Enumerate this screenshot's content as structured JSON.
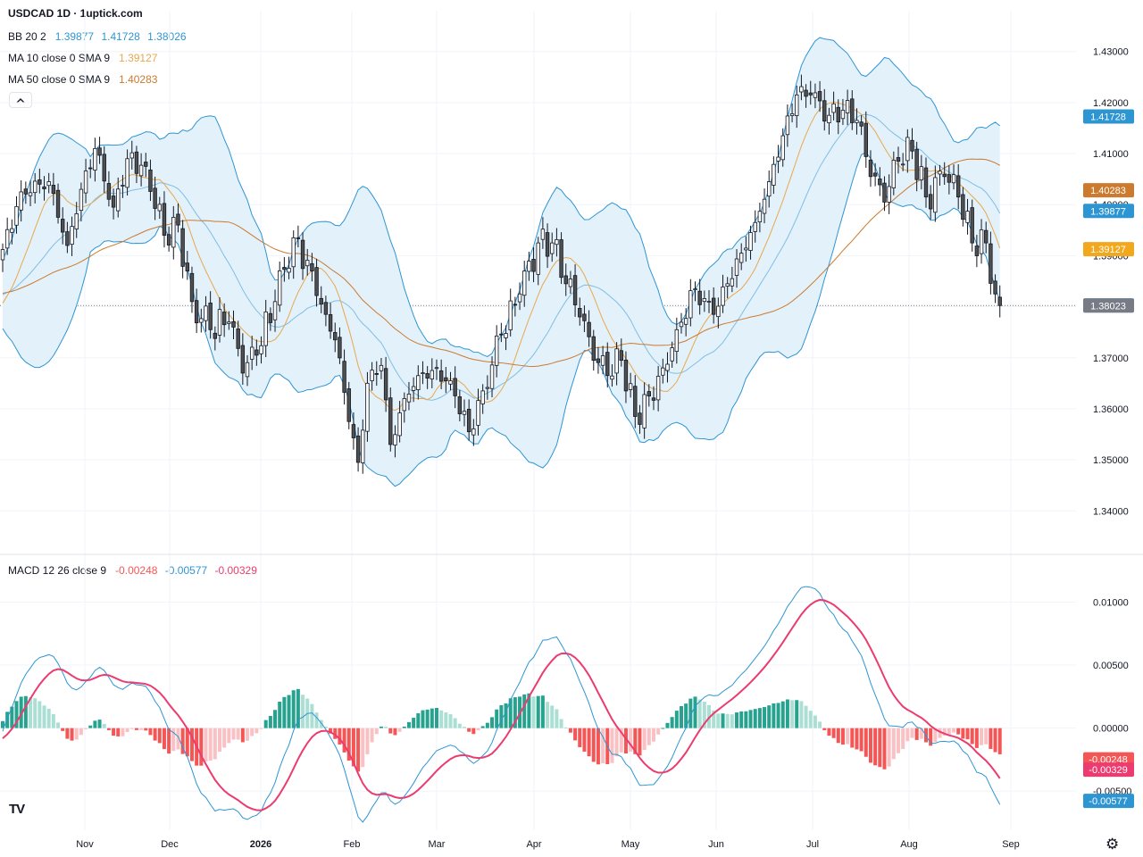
{
  "header": {
    "title": "USDCAD 1D · 1uptick.com",
    "bb": {
      "label": "BB 20 2",
      "basis": "1.39877",
      "upper": "1.41728",
      "lower": "1.38026"
    },
    "ma10": {
      "label": "MA 10 close 0 SMA 9",
      "value": "1.39127"
    },
    "ma50": {
      "label": "MA 50 close 0 SMA 9",
      "value": "1.40283"
    },
    "macd": {
      "label": "MACD 12 26 close 9",
      "hist": "-0.00248",
      "macd": "-0.00577",
      "signal": "-0.00329"
    },
    "collapse_icon": "chevron-up-icon"
  },
  "colors": {
    "up": "#ffffff",
    "down": "#505050",
    "wick": "#131722",
    "bb_line": "#2e95d3",
    "bb_fill": "#e3f1fb",
    "ma10": "#e8a84c",
    "ma50": "#cc7a2e",
    "macd": "#2e95d3",
    "signal": "#ec3b6e",
    "hist_pos_strong": "#26a28f",
    "hist_pos_weak": "#acdfd3",
    "hist_neg_strong": "#f45656",
    "hist_neg_weak": "#f9c1c4"
  },
  "price_axis": {
    "ticks": [
      "1.43000",
      "1.42000",
      "1.41000",
      "1.40000",
      "1.39000",
      "1.38000",
      "1.37000",
      "1.36000",
      "1.35000",
      "1.34000"
    ],
    "badges": [
      {
        "text": "1.41728",
        "value": 1.41728,
        "color": "#2e95d3"
      },
      {
        "text": "1.40283",
        "value": 1.40283,
        "color": "#cc7a2e"
      },
      {
        "text": "1.39877",
        "value": 1.39877,
        "color": "#2e95d3"
      },
      {
        "text": "1.39127",
        "value": 1.39127,
        "color": "#f2a81d"
      },
      {
        "text": "1.38026",
        "value": 1.38026,
        "color": "#2e95d3"
      },
      {
        "text": "1.38023",
        "value": 1.38023,
        "color": "#787b86"
      }
    ]
  },
  "macd_axis": {
    "ticks": [
      "0.01000",
      "0.00500",
      "0.00000",
      "-0.00500"
    ],
    "badges": [
      {
        "text": "-0.00248",
        "value": -0.00248,
        "color": "#f45656"
      },
      {
        "text": "-0.00329",
        "value": -0.00329,
        "color": "#ec3b6e"
      },
      {
        "text": "-0.00577",
        "value": -0.00577,
        "color": "#2e95d3"
      }
    ]
  },
  "time_axis": {
    "labels": [
      "Nov",
      "Dec",
      "2026",
      "Feb",
      "Mar",
      "Apr",
      "May",
      "Jun",
      "Jul",
      "Aug",
      "Sep"
    ],
    "bold": "2026"
  },
  "footer": {
    "logo": "TV",
    "settings_icon": "gear-icon"
  },
  "chart_data": {
    "type": "candlestick",
    "symbol": "USDCAD",
    "interval": "1D",
    "price_range": [
      1.332,
      1.438
    ],
    "macd_range": [
      -0.0081,
      0.0135
    ],
    "current_price": 1.38023,
    "anchors": [
      {
        "d": 0,
        "c": 1.3912
      },
      {
        "d": 4,
        "c": 1.4025
      },
      {
        "d": 10,
        "c": 1.4045
      },
      {
        "d": 14,
        "c": 1.392
      },
      {
        "d": 17,
        "c": 1.403
      },
      {
        "d": 20,
        "c": 1.411
      },
      {
        "d": 24,
        "c": 1.3995
      },
      {
        "d": 27,
        "c": 1.409
      },
      {
        "d": 31,
        "c": 1.4075
      },
      {
        "d": 35,
        "c": 1.394
      },
      {
        "d": 38,
        "c": 1.396
      },
      {
        "d": 41,
        "c": 1.381
      },
      {
        "d": 45,
        "c": 1.3755
      },
      {
        "d": 49,
        "c": 1.377
      },
      {
        "d": 52,
        "c": 1.367
      },
      {
        "d": 55,
        "c": 1.3705
      },
      {
        "d": 59,
        "c": 1.381
      },
      {
        "d": 63,
        "c": 1.3935
      },
      {
        "d": 67,
        "c": 1.387
      },
      {
        "d": 70,
        "c": 1.3785
      },
      {
        "d": 72,
        "c": 1.3735
      },
      {
        "d": 75,
        "c": 1.3575
      },
      {
        "d": 77,
        "c": 1.3495
      },
      {
        "d": 79,
        "c": 1.365
      },
      {
        "d": 82,
        "c": 1.3685
      },
      {
        "d": 84,
        "c": 1.353
      },
      {
        "d": 87,
        "c": 1.362
      },
      {
        "d": 90,
        "c": 1.3665
      },
      {
        "d": 93,
        "c": 1.3675
      },
      {
        "d": 97,
        "c": 1.3655
      },
      {
        "d": 101,
        "c": 1.3555
      },
      {
        "d": 104,
        "c": 1.3635
      },
      {
        "d": 108,
        "c": 1.3745
      },
      {
        "d": 112,
        "c": 1.3825
      },
      {
        "d": 116,
        "c": 1.3925
      },
      {
        "d": 119,
        "c": 1.3925
      },
      {
        "d": 122,
        "c": 1.3845
      },
      {
        "d": 125,
        "c": 1.378
      },
      {
        "d": 128,
        "c": 1.3695
      },
      {
        "d": 131,
        "c": 1.3665
      },
      {
        "d": 134,
        "c": 1.3695
      },
      {
        "d": 137,
        "c": 1.3585
      },
      {
        "d": 140,
        "c": 1.3625
      },
      {
        "d": 143,
        "c": 1.368
      },
      {
        "d": 146,
        "c": 1.3755
      },
      {
        "d": 150,
        "c": 1.3835
      },
      {
        "d": 154,
        "c": 1.3785
      },
      {
        "d": 157,
        "c": 1.3845
      },
      {
        "d": 160,
        "c": 1.3905
      },
      {
        "d": 163,
        "c": 1.3965
      },
      {
        "d": 166,
        "c": 1.4045
      },
      {
        "d": 169,
        "c": 1.4135
      },
      {
        "d": 172,
        "c": 1.4215
      },
      {
        "d": 175,
        "c": 1.4215
      },
      {
        "d": 179,
        "c": 1.4175
      },
      {
        "d": 182,
        "c": 1.4185
      },
      {
        "d": 185,
        "c": 1.4165
      },
      {
        "d": 188,
        "c": 1.4055
      },
      {
        "d": 191,
        "c": 1.4005
      },
      {
        "d": 194,
        "c": 1.4085
      },
      {
        "d": 197,
        "c": 1.4105
      },
      {
        "d": 200,
        "c": 1.4015
      },
      {
        "d": 204,
        "c": 1.4055
      },
      {
        "d": 207,
        "c": 1.4015
      },
      {
        "d": 210,
        "c": 1.3925
      },
      {
        "d": 213,
        "c": 1.3925
      },
      {
        "d": 215,
        "c": 1.3825
      },
      {
        "d": 216,
        "c": 1.38023
      }
    ]
  }
}
